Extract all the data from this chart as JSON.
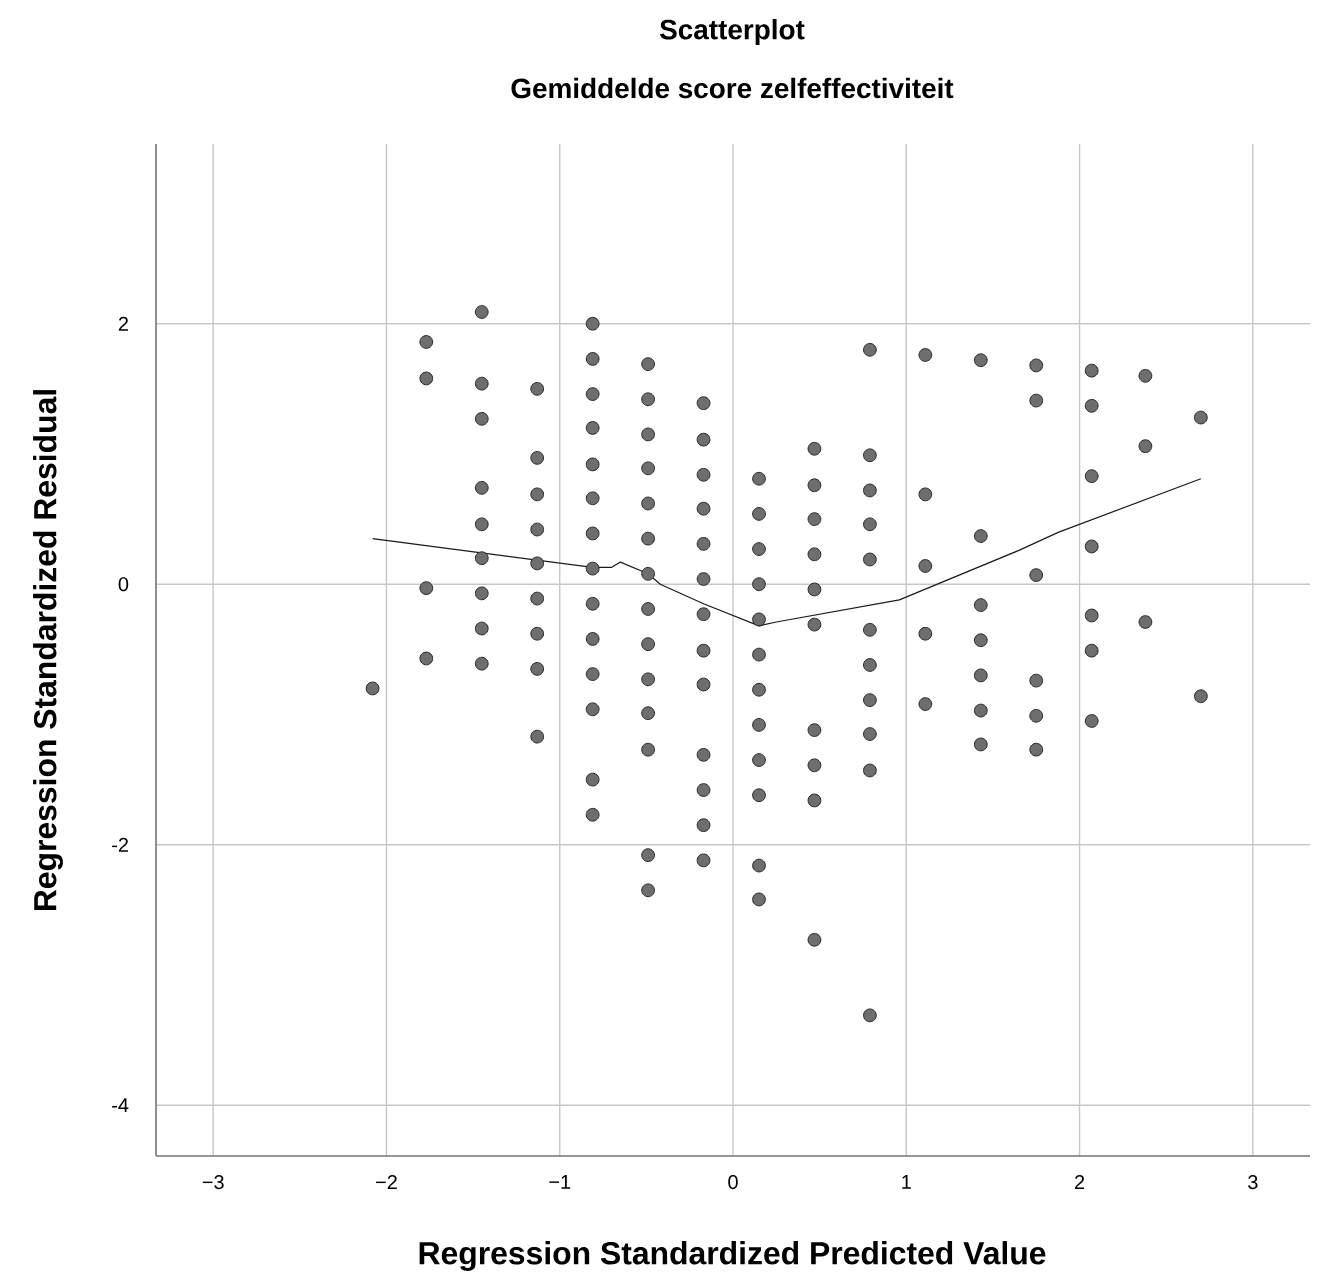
{
  "chart_data": {
    "type": "scatter",
    "title": "Scatterplot",
    "subtitle": "Gemiddelde score zelfeffectiviteit",
    "xlabel": "Regression Standardized Predicted Value",
    "ylabel": "Regression Standardized Residual",
    "xlim": [
      -3.33,
      3.33
    ],
    "ylim": [
      -4.39,
      3.38
    ],
    "xticks": [
      {
        "value": -3,
        "label": "−3"
      },
      {
        "value": -2,
        "label": "−2"
      },
      {
        "value": -1,
        "label": "−1"
      },
      0,
      1,
      2,
      3
    ],
    "yticks": [
      {
        "value": -4,
        "label": "-4"
      },
      {
        "value": -2,
        "label": "-2"
      },
      0,
      2
    ],
    "grid": true,
    "series": [
      {
        "marker": "circle",
        "color": "#6e6e6e",
        "x": [
          -2.08,
          -1.77,
          -1.77,
          -1.77,
          -1.77,
          -1.45,
          -1.45,
          -1.45,
          -1.45,
          -1.45,
          -1.45,
          -1.45,
          -1.45,
          -1.45,
          -1.13,
          -1.13,
          -1.13,
          -1.13,
          -1.13,
          -1.13,
          -1.13,
          -1.13,
          -1.13,
          -0.81,
          -0.81,
          -0.81,
          -0.81,
          -0.81,
          -0.81,
          -0.81,
          -0.81,
          -0.81,
          -0.81,
          -0.81,
          -0.81,
          -0.81,
          -0.81,
          -0.49,
          -0.49,
          -0.49,
          -0.49,
          -0.49,
          -0.49,
          -0.49,
          -0.49,
          -0.49,
          -0.49,
          -0.49,
          -0.49,
          -0.49,
          -0.49,
          -0.17,
          -0.17,
          -0.17,
          -0.17,
          -0.17,
          -0.17,
          -0.17,
          -0.17,
          -0.17,
          -0.17,
          -0.17,
          -0.17,
          -0.17,
          0.15,
          0.15,
          0.15,
          0.15,
          0.15,
          0.15,
          0.15,
          0.15,
          0.15,
          0.15,
          0.15,
          0.15,
          0.47,
          0.47,
          0.47,
          0.47,
          0.47,
          0.47,
          0.47,
          0.47,
          0.47,
          0.47,
          0.79,
          0.79,
          0.79,
          0.79,
          0.79,
          0.79,
          0.79,
          0.79,
          0.79,
          0.79,
          0.79,
          1.11,
          1.11,
          1.11,
          1.11,
          1.11,
          1.43,
          1.43,
          1.43,
          1.43,
          1.43,
          1.43,
          1.43,
          1.75,
          1.75,
          1.75,
          1.75,
          1.75,
          1.75,
          2.07,
          2.07,
          2.07,
          2.07,
          2.07,
          2.07,
          2.07,
          2.38,
          2.38,
          2.38,
          2.7,
          2.7
        ],
        "values": [
          -0.8,
          1.86,
          1.58,
          -0.03,
          -0.57,
          2.09,
          1.54,
          1.27,
          0.74,
          0.46,
          0.2,
          -0.07,
          -0.34,
          -0.61,
          1.5,
          0.97,
          0.69,
          0.42,
          0.16,
          -0.11,
          -0.38,
          -0.65,
          -1.17,
          2.0,
          1.73,
          1.46,
          1.2,
          0.92,
          0.66,
          0.39,
          0.12,
          -0.15,
          -0.42,
          -0.69,
          -0.96,
          -1.5,
          -1.77,
          1.69,
          1.42,
          1.15,
          0.89,
          0.62,
          0.35,
          0.08,
          -0.19,
          -0.46,
          -0.73,
          -0.99,
          -1.27,
          -2.08,
          -2.35,
          1.39,
          1.11,
          0.84,
          0.58,
          0.31,
          0.04,
          -0.23,
          -0.51,
          -0.77,
          -1.31,
          -1.58,
          -1.85,
          -2.12,
          0.81,
          0.54,
          0.27,
          0.0,
          -0.27,
          -0.54,
          -0.81,
          -1.08,
          -1.35,
          -1.62,
          -2.16,
          -2.42,
          1.04,
          0.76,
          0.5,
          0.23,
          -0.04,
          -0.31,
          -1.12,
          -1.39,
          -1.66,
          -2.73,
          1.8,
          0.99,
          0.72,
          0.46,
          0.19,
          -0.35,
          -0.62,
          -0.89,
          -1.15,
          -1.43,
          -3.31,
          1.76,
          0.69,
          0.14,
          -0.38,
          -0.92,
          1.72,
          0.37,
          -0.16,
          -0.43,
          -0.7,
          -0.97,
          -1.23,
          1.68,
          1.41,
          0.07,
          -0.74,
          -1.01,
          -1.27,
          1.64,
          1.37,
          0.83,
          0.29,
          -0.24,
          -0.51,
          -1.05,
          1.6,
          1.06,
          -0.29,
          1.28,
          -0.86
        ]
      },
      {
        "type": "line",
        "marker": "none",
        "color": "#1a1a1a",
        "x": [
          -2.08,
          -0.81,
          -0.7,
          -0.65,
          -0.49,
          -0.42,
          -0.17,
          0.15,
          0.25,
          0.96,
          1.65,
          1.88,
          2.7
        ],
        "values": [
          0.35,
          0.13,
          0.13,
          0.17,
          0.08,
          0.0,
          -0.15,
          -0.32,
          -0.29,
          -0.12,
          0.26,
          0.4,
          0.81
        ]
      }
    ]
  }
}
